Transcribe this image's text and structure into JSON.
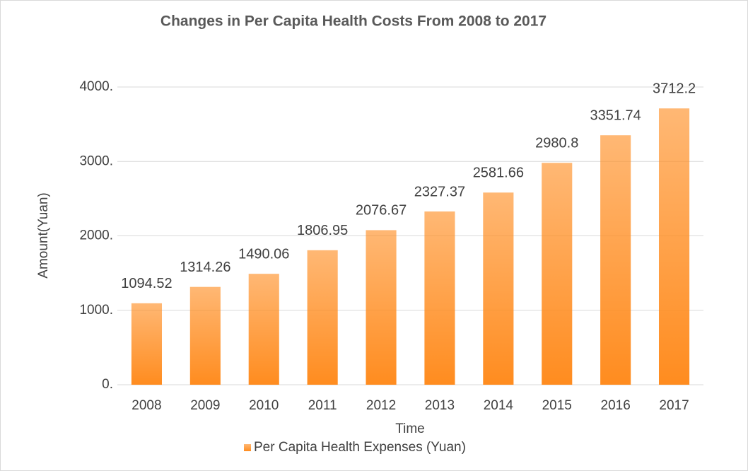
{
  "chart_data": {
    "type": "bar",
    "title": "Changes in Per Capita Health Costs From 2008 to 2017",
    "x_label": "Time",
    "y_label": "Amount(Yuan)",
    "categories": [
      "2008",
      "2009",
      "2010",
      "2011",
      "2012",
      "2013",
      "2014",
      "2015",
      "2016",
      "2017"
    ],
    "series": [
      {
        "name": "Per Capita Health Expenses (Yuan)",
        "color": "#ff8c1f",
        "values": [
          1094.52,
          1314.26,
          1490.06,
          1806.95,
          2076.67,
          2327.37,
          2581.66,
          2980.8,
          3351.74,
          3712.2
        ]
      }
    ],
    "ylim": [
      0,
      4000
    ],
    "yticks": [
      {
        "value": 0,
        "label": "0."
      },
      {
        "value": 1000,
        "label": "1000."
      },
      {
        "value": 2000,
        "label": "2000."
      },
      {
        "value": 3000,
        "label": "3000."
      },
      {
        "value": 4000,
        "label": "4000."
      }
    ],
    "grid": true,
    "legend": "bottom"
  }
}
